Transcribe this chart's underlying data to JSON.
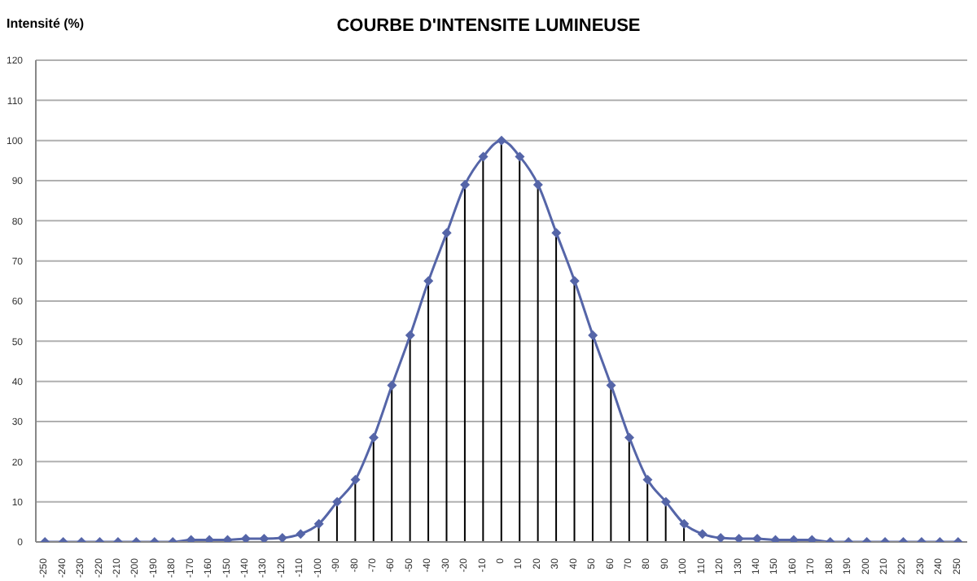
{
  "chart_data": {
    "type": "line",
    "title": "COURBE D'INTENSITE LUMINEUSE",
    "ylabel": "Intensité (%)",
    "categories": [
      "-250",
      "-240",
      "-230",
      "-220",
      "-210",
      "-200",
      "-190",
      "-180",
      "-170",
      "-160",
      "-150",
      "-140",
      "-130",
      "-120",
      "-110",
      "-100",
      "-90",
      "-80",
      "-70",
      "-60",
      "-50",
      "-40",
      "-30",
      "-20",
      "-10",
      "0",
      "10",
      "20",
      "30",
      "40",
      "50",
      "60",
      "70",
      "80",
      "90",
      "100",
      "110",
      "120",
      "130",
      "140",
      "150",
      "160",
      "170",
      "180",
      "190",
      "200",
      "210",
      "220",
      "230",
      "240",
      "250"
    ],
    "series": [
      {
        "type": "bar",
        "color": "#000000",
        "values": [
          null,
          null,
          null,
          null,
          null,
          null,
          null,
          null,
          null,
          null,
          null,
          null,
          null,
          null,
          null,
          4.5,
          10,
          15.5,
          26,
          39,
          51.5,
          65,
          77,
          89,
          96,
          100,
          96,
          89,
          77,
          65,
          51.5,
          39,
          26,
          15.5,
          10,
          4.5,
          null,
          null,
          null,
          null,
          null,
          null,
          null,
          null,
          null,
          null,
          null,
          null,
          null,
          null,
          null
        ]
      },
      {
        "color": "#5565a8",
        "values": [
          0,
          0,
          0,
          0,
          0,
          0,
          0,
          0,
          0.5,
          0.5,
          0.5,
          0.8,
          0.8,
          1,
          2,
          4.5,
          10,
          15.5,
          26,
          39,
          51.5,
          65,
          77,
          89,
          96,
          100,
          96,
          89,
          77,
          65,
          51.5,
          39,
          26,
          15.5,
          10,
          4.5,
          2,
          1,
          0.8,
          0.8,
          0.5,
          0.5,
          0.5,
          0,
          0,
          0,
          0,
          0,
          0,
          0,
          0
        ]
      }
    ],
    "ylim": [
      0,
      120
    ],
    "yticks": [
      0,
      10,
      20,
      30,
      40,
      50,
      60,
      70,
      80,
      90,
      100,
      110,
      120
    ],
    "grid": "y",
    "marker": "diamond",
    "legend": false
  }
}
